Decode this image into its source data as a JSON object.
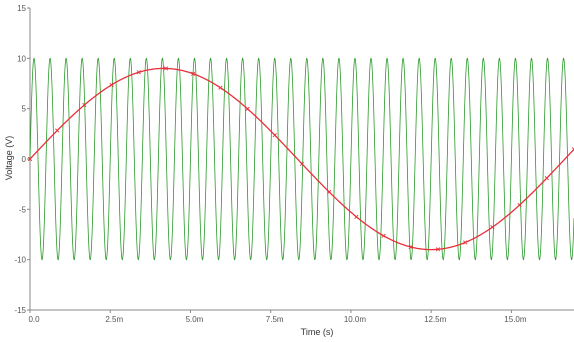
{
  "chart_data": {
    "type": "line",
    "xlabel": "Time (s)",
    "ylabel": "Voltage (V)",
    "xlim": [
      0,
      0.01695
    ],
    "ylim": [
      -15,
      15
    ],
    "x_ticks": [
      {
        "value": 0,
        "label": "0.0"
      },
      {
        "value": 0.0025,
        "label": "2.5m"
      },
      {
        "value": 0.005,
        "label": "5.0m"
      },
      {
        "value": 0.0075,
        "label": "7.5m"
      },
      {
        "value": 0.01,
        "label": "10.0m"
      },
      {
        "value": 0.0125,
        "label": "12.5m"
      },
      {
        "value": 0.015,
        "label": "15.0m"
      }
    ],
    "y_ticks": [
      {
        "value": 15,
        "label": "15"
      },
      {
        "value": 10,
        "label": "10"
      },
      {
        "value": 5,
        "label": "5"
      },
      {
        "value": 0,
        "label": "0"
      },
      {
        "value": -5,
        "label": "-5"
      },
      {
        "value": -10,
        "label": "-10"
      },
      {
        "value": -15,
        "label": "-15"
      }
    ],
    "grid": false,
    "series": [
      {
        "color": "#2a9a2a",
        "waveform": "sine",
        "amplitude": 10,
        "frequency_hz": 2000,
        "phase_deg": 0
      },
      {
        "color": "#e8303a",
        "waveform": "sine",
        "amplitude": 9,
        "frequency_hz": 60,
        "phase_deg": 0,
        "markers": "x"
      }
    ]
  }
}
